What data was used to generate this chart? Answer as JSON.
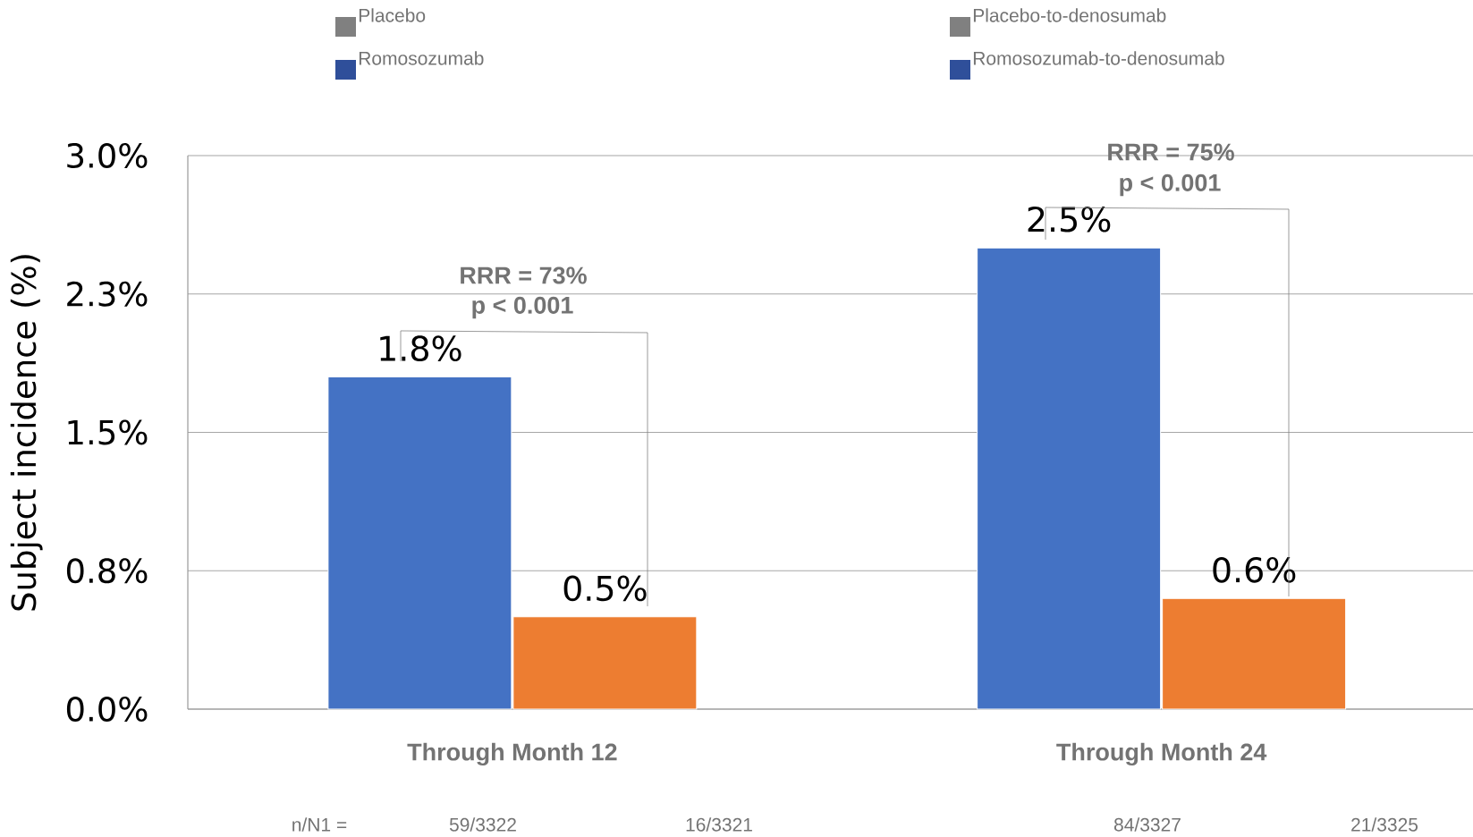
{
  "chart_data": {
    "type": "bar",
    "ylabel": "Subject incidence (%)",
    "categories": [
      "Through Month 12",
      "Through Month 24"
    ],
    "series": [
      {
        "color": "#4472c4",
        "values": [
          1.8,
          2.5
        ],
        "value_labels": [
          "1.8%",
          "2.5%"
        ]
      },
      {
        "color": "#ed7d31",
        "values": [
          0.5,
          0.6
        ],
        "value_labels": [
          "0.5%",
          "0.6%"
        ]
      }
    ],
    "ylim": [
      0,
      3.0
    ],
    "yticks": [
      {
        "value": 0,
        "label": "0.0%"
      },
      {
        "value": 0.75,
        "label": "0.8%"
      },
      {
        "value": 1.5,
        "label": "1.5%"
      },
      {
        "value": 2.25,
        "label": "2.3%"
      },
      {
        "value": 3.0,
        "label": "3.0%"
      }
    ],
    "grid": "y",
    "annotations": [
      "RRR = 73%",
      "p < 0.001",
      "RRR = 75%",
      "p < 0.001",
      "Placebo",
      "Romosozumab",
      "Placebo-to-denosumab",
      "Romosozumab-to-denosumab",
      "n/N1 =",
      "59/3322",
      "16/3321",
      "84/3327",
      "21/3325"
    ]
  }
}
